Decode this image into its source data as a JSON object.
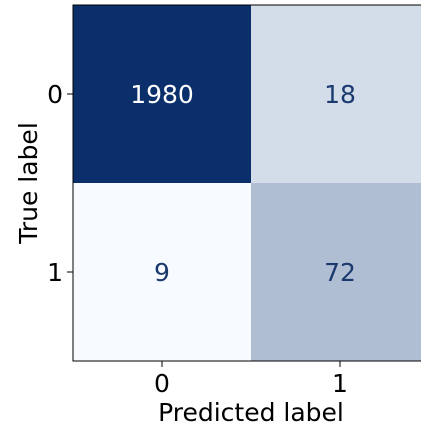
{
  "chart_data": {
    "type": "heatmap",
    "title": "",
    "xlabel": "Predicted label",
    "ylabel": "True label",
    "x_categories": [
      "0",
      "1"
    ],
    "y_categories": [
      "0",
      "1"
    ],
    "values": [
      [
        1980,
        18
      ],
      [
        9,
        72
      ]
    ],
    "colormap": "Blues",
    "colorbar": false
  },
  "colors": {
    "high": "#0a2f6b",
    "low": "#f7fbff",
    "text_dark_cell": "#ffffff",
    "text_light_cell": "#1a3a6e"
  }
}
